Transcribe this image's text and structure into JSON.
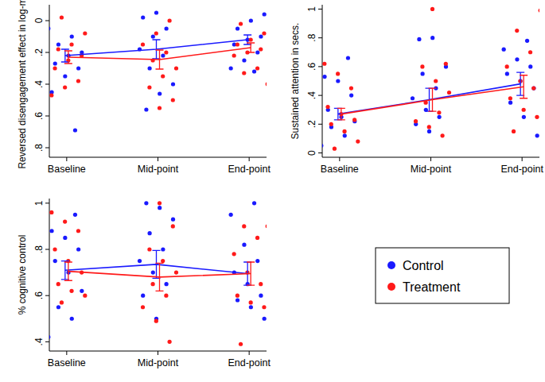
{
  "chart_data": [
    {
      "type": "line",
      "ylabel": "Reversed disengagement effect in log-ms",
      "categories": [
        "Baseline",
        "Mid-point",
        "End-point"
      ],
      "ylim": [
        0.86,
        -0.1
      ],
      "yticks": [
        0,
        {
          "value": 0.2,
          "label": ".2"
        },
        {
          "value": 0.4,
          "label": ".4"
        },
        {
          "value": 0.6,
          "label": ".6"
        },
        {
          "value": 0.8,
          "label": ".8"
        }
      ],
      "series": [
        {
          "name": "Control",
          "color": "#1a1aff",
          "marker": "circle",
          "values": [
            0.22,
            0.18,
            0.12
          ],
          "errors": [
            0.04,
            0.06,
            0.03
          ],
          "points": [
            [
              0.05,
              0.1,
              0.15,
              0.2,
              0.22,
              0.27,
              0.3,
              0.35,
              0.45,
              0.69
            ],
            [
              -0.05,
              -0.02,
              0.05,
              0.1,
              0.18,
              0.22,
              0.3,
              0.4,
              0.46,
              0.56
            ],
            [
              -0.04,
              0.0,
              0.05,
              0.1,
              0.12,
              0.15,
              0.2,
              0.25,
              0.3,
              0.32
            ]
          ]
        },
        {
          "name": "Treatment",
          "color": "#ff1a1a",
          "marker": "circle",
          "values": [
            0.23,
            0.245,
            0.17
          ],
          "errors": [
            0.04,
            0.06,
            0.03
          ],
          "points": [
            [
              -0.02,
              0.08,
              0.15,
              0.18,
              0.22,
              0.25,
              0.3,
              0.38,
              0.42,
              0.47
            ],
            [
              0.0,
              0.08,
              0.15,
              0.2,
              0.25,
              0.3,
              0.35,
              0.42,
              0.5,
              0.55
            ],
            [
              0.02,
              0.08,
              0.12,
              0.15,
              0.18,
              0.2,
              0.22,
              0.3,
              0.33,
              0.4
            ]
          ]
        }
      ]
    },
    {
      "type": "line",
      "ylabel": "Sustained attention in secs.",
      "categories": [
        "Baseline",
        "Mid-point",
        "End-point"
      ],
      "ylim": [
        -0.03,
        1.03
      ],
      "yticks": [
        0,
        {
          "value": 0.2,
          "label": ".2"
        },
        {
          "value": 0.4,
          "label": ".4"
        },
        {
          "value": 0.6,
          "label": ".6"
        },
        {
          "value": 0.8,
          "label": ".8"
        },
        1
      ],
      "series": [
        {
          "name": "Control",
          "color": "#1a1aff",
          "marker": "circle",
          "values": [
            0.27,
            0.37,
            0.48
          ],
          "errors": [
            0.04,
            0.08,
            0.08
          ],
          "points": [
            [
              0.05,
              0.12,
              0.18,
              0.22,
              0.25,
              0.3,
              0.4,
              0.5,
              0.53,
              0.66
            ],
            [
              0.15,
              0.2,
              0.25,
              0.3,
              0.38,
              0.45,
              0.55,
              0.6,
              0.8,
              0.79
            ],
            [
              0.12,
              0.25,
              0.35,
              0.45,
              0.5,
              0.55,
              0.6,
              0.65,
              0.72,
              0.78
            ]
          ]
        },
        {
          "name": "Treatment",
          "color": "#ff1a1a",
          "marker": "circle",
          "values": [
            0.27,
            0.37,
            0.46
          ],
          "errors": [
            0.04,
            0.08,
            0.08
          ],
          "points": [
            [
              0.03,
              0.08,
              0.15,
              0.2,
              0.23,
              0.27,
              0.32,
              0.45,
              0.55,
              0.62
            ],
            [
              0.12,
              0.18,
              0.22,
              0.28,
              0.35,
              0.42,
              0.5,
              0.6,
              0.62,
              1.0
            ],
            [
              0.15,
              0.25,
              0.3,
              0.38,
              0.45,
              0.5,
              0.6,
              0.7,
              0.85,
              0.99
            ]
          ]
        }
      ]
    },
    {
      "type": "line",
      "ylabel": "% cognitive control",
      "legend": "right",
      "categories": [
        "Baseline",
        "Mid-point",
        "End-point"
      ],
      "ylim": [
        0.36,
        1.02
      ],
      "yticks": [
        {
          "value": 0.4,
          "label": ".4"
        },
        {
          "value": 0.6,
          "label": ".6"
        },
        {
          "value": 0.8,
          "label": ".8"
        },
        1
      ],
      "series": [
        {
          "name": "Control",
          "color": "#1a1aff",
          "marker": "circle",
          "values": [
            0.71,
            0.735,
            0.695
          ],
          "errors": [
            0.04,
            0.06,
            0.05
          ],
          "points": [
            [
              0.42,
              0.5,
              0.55,
              0.62,
              0.7,
              0.75,
              0.8,
              0.85,
              0.88,
              0.95
            ],
            [
              0.5,
              0.6,
              0.65,
              0.7,
              0.75,
              0.8,
              0.87,
              0.93,
              0.98,
              1.0
            ],
            [
              0.5,
              0.55,
              0.58,
              0.6,
              0.65,
              0.7,
              0.75,
              0.82,
              0.95,
              1.0
            ]
          ]
        },
        {
          "name": "Treatment",
          "color": "#ff1a1a",
          "marker": "circle",
          "values": [
            0.705,
            0.68,
            0.695
          ],
          "errors": [
            0.04,
            0.06,
            0.05
          ],
          "points": [
            [
              0.57,
              0.6,
              0.62,
              0.65,
              0.7,
              0.75,
              0.8,
              0.88,
              0.92,
              0.96
            ],
            [
              0.4,
              0.49,
              0.55,
              0.6,
              0.65,
              0.7,
              0.75,
              0.8,
              0.9,
              1.0
            ],
            [
              0.39,
              0.55,
              0.57,
              0.6,
              0.65,
              0.7,
              0.78,
              0.85,
              0.9,
              0.9
            ]
          ]
        }
      ]
    }
  ]
}
